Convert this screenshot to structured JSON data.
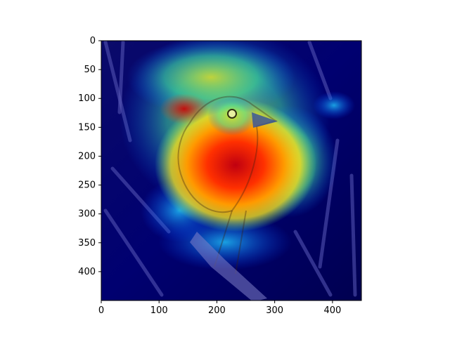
{
  "figure": {
    "image_description_icon": "bird-on-branch-gradcam-heatmap-icon",
    "colors": {
      "background": "#ffffff",
      "axis": "#000000",
      "heat_low": "#000080",
      "heat_mid": "#00c0ff",
      "heat_high": "#ff0000"
    }
  },
  "axes": {
    "x_ticks": [
      "0",
      "100",
      "200",
      "300",
      "400"
    ],
    "y_ticks": [
      "0",
      "50",
      "100",
      "150",
      "200",
      "250",
      "300",
      "350",
      "400"
    ]
  }
}
